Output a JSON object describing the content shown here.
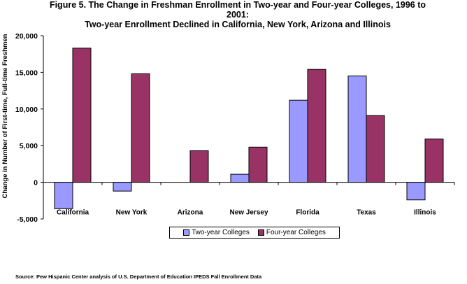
{
  "chart_data": {
    "type": "bar",
    "title_lines": [
      "Figure 5. The Change in Freshman Enrollment in Two-year and Four-year Colleges, 1996 to",
      "2001:",
      "Two-year Enrollment Declined in California, New York, Arizona and Illinois"
    ],
    "ylabel": "Change in Number of First-time, Full-time Freshmen",
    "xlabel": "",
    "categories": [
      "California",
      "New York",
      "Arizona",
      "New Jersey",
      "Florida",
      "Texas",
      "Illinois"
    ],
    "series": [
      {
        "name": "Two-year Colleges",
        "color": "#9999FF",
        "values": [
          -3600,
          -1200,
          0,
          1100,
          11200,
          14500,
          -2400
        ]
      },
      {
        "name": "Four-year Colleges",
        "color": "#993366",
        "values": [
          18300,
          14800,
          4300,
          4800,
          15400,
          9100,
          5900
        ]
      }
    ],
    "ylim": [
      -5000,
      20000
    ],
    "yticks": [
      -5000,
      0,
      5000,
      10000,
      15000,
      20000
    ],
    "ytick_labels": [
      "-5,000",
      "0",
      "5,000",
      "10,000",
      "15,000",
      "20,000"
    ],
    "legend_position": "bottom",
    "grid": false
  },
  "source": "Source: Pew Hispanic Center analysis of U.S. Department of Education IPEDS Fall Enrollment Data"
}
